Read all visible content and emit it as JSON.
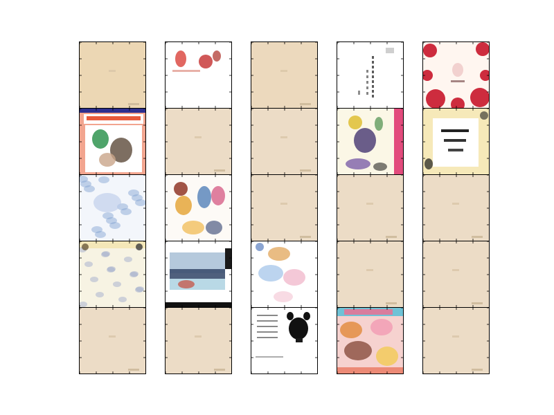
{
  "figure": {
    "rows": 5,
    "cols": 5,
    "cells": [
      {
        "row": 0,
        "col": 0,
        "kind": "blank-page",
        "bg": "#ecd7b4"
      },
      {
        "row": 0,
        "col": 1,
        "kind": "art-red-figures",
        "bg": "#ffffff"
      },
      {
        "row": 0,
        "col": 2,
        "kind": "blank-page",
        "bg": "#ecd9bd"
      },
      {
        "row": 0,
        "col": 3,
        "kind": "text-vertical",
        "bg": "#ffffff"
      },
      {
        "row": 0,
        "col": 4,
        "kind": "art-red-flowers",
        "bg": "#fff6f0"
      },
      {
        "row": 1,
        "col": 0,
        "kind": "art-cover-banner",
        "bg": "#f2a58f"
      },
      {
        "row": 1,
        "col": 1,
        "kind": "blank-page",
        "bg": "#ecdcc6"
      },
      {
        "row": 1,
        "col": 2,
        "kind": "blank-page",
        "bg": "#ecdcc6"
      },
      {
        "row": 1,
        "col": 3,
        "kind": "art-figures-pink-edge",
        "bg": "#fbf7e6"
      },
      {
        "row": 1,
        "col": 4,
        "kind": "art-yellow-frame",
        "bg": "#f6e9b9"
      },
      {
        "row": 2,
        "col": 0,
        "kind": "art-blue-sketch",
        "bg": "#f3f6fb"
      },
      {
        "row": 2,
        "col": 1,
        "kind": "art-color-figures",
        "bg": "#fdfaf6"
      },
      {
        "row": 2,
        "col": 2,
        "kind": "blank-page",
        "bg": "#ecdcc6"
      },
      {
        "row": 2,
        "col": 3,
        "kind": "blank-page",
        "bg": "#ecdcc6"
      },
      {
        "row": 2,
        "col": 4,
        "kind": "blank-page",
        "bg": "#ecdcc6"
      },
      {
        "row": 3,
        "col": 0,
        "kind": "art-yellow-sketch",
        "bg": "#f7f3e3"
      },
      {
        "row": 3,
        "col": 1,
        "kind": "art-landscape",
        "bg": "#ffffff"
      },
      {
        "row": 3,
        "col": 2,
        "kind": "art-pastel-sketch",
        "bg": "#ffffff"
      },
      {
        "row": 3,
        "col": 3,
        "kind": "blank-page",
        "bg": "#ecdcc6"
      },
      {
        "row": 3,
        "col": 4,
        "kind": "blank-page",
        "bg": "#ecdcc6"
      },
      {
        "row": 4,
        "col": 0,
        "kind": "blank-page",
        "bg": "#ecdcc6"
      },
      {
        "row": 4,
        "col": 1,
        "kind": "blank-page",
        "bg": "#ecdcc6"
      },
      {
        "row": 4,
        "col": 2,
        "kind": "art-black-cat",
        "bg": "#ffffff"
      },
      {
        "row": 4,
        "col": 3,
        "kind": "art-colorful-cover",
        "bg": "#f6d2cf"
      },
      {
        "row": 4,
        "col": 4,
        "kind": "blank-page",
        "bg": "#ecdcc6"
      }
    ]
  }
}
